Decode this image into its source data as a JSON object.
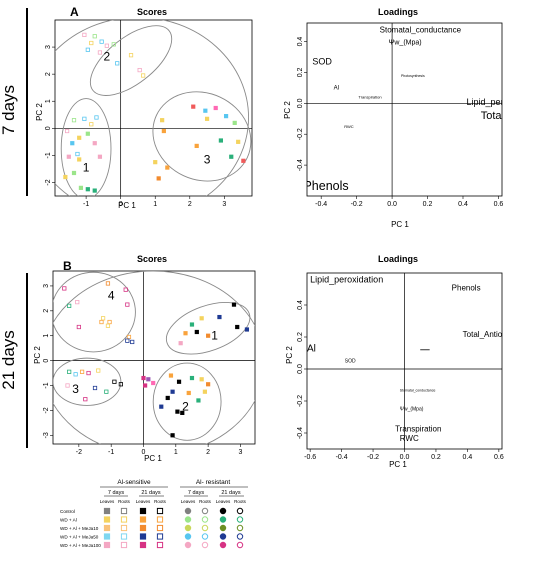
{
  "figure": {
    "panel_a_letter": "A",
    "panel_b_letter": "B",
    "row_a_label": "7 days",
    "row_b_label": "21 days"
  },
  "chart_data": [
    {
      "id": "scores_7",
      "type": "scatter",
      "title": "Scores",
      "xlabel": "PC 1",
      "ylabel": "PC 2",
      "xlim": [
        -1.9,
        3.8
      ],
      "ylim": [
        -2.5,
        4.0
      ],
      "xticks": [
        "-1",
        "0",
        "1",
        "2",
        "3"
      ],
      "xtick_values": [
        -1,
        0,
        1,
        2,
        3
      ],
      "yticks": [
        "-2",
        "-1",
        "0",
        "1",
        "2",
        "3"
      ],
      "ytick_values": [
        -2,
        -1,
        0,
        1,
        2,
        3
      ],
      "group_labels": [
        {
          "text": "1",
          "x": -1.0,
          "y": -1.6
        },
        {
          "text": "2",
          "x": -0.4,
          "y": 2.5
        },
        {
          "text": "3",
          "x": 2.5,
          "y": -1.3
        }
      ],
      "ellipses": [
        {
          "cx": 0.3,
          "cy": 2.5,
          "rx": 1.4,
          "ry": 0.85,
          "angle": -38
        },
        {
          "cx": -1.0,
          "cy": -0.75,
          "rx": 0.72,
          "ry": 1.85,
          "angle": 0
        },
        {
          "cx": 2.35,
          "cy": -0.3,
          "rx": 1.45,
          "ry": 1.6,
          "angle": 25
        },
        {
          "cx": 0.5,
          "cy": 0.4,
          "rx": 3.2,
          "ry": 3.7,
          "angle": 0
        }
      ],
      "points": [
        {
          "x": -1.05,
          "y": 3.45,
          "c": "#f4a7c3",
          "f": 0
        },
        {
          "x": -0.75,
          "y": 3.4,
          "c": "#9be58a",
          "f": 0
        },
        {
          "x": -0.55,
          "y": 3.2,
          "c": "#58c6f0",
          "f": 0
        },
        {
          "x": -0.85,
          "y": 3.15,
          "c": "#f4d35e",
          "f": 0
        },
        {
          "x": -0.4,
          "y": 3.05,
          "c": "#f4a7c3",
          "f": 0
        },
        {
          "x": -0.2,
          "y": 3.1,
          "c": "#9be58a",
          "f": 0
        },
        {
          "x": -0.95,
          "y": 2.9,
          "c": "#58c6f0",
          "f": 0
        },
        {
          "x": -0.6,
          "y": 2.8,
          "c": "#f4a7c3",
          "f": 0
        },
        {
          "x": 0.3,
          "y": 2.7,
          "c": "#f4d35e",
          "f": 0
        },
        {
          "x": 0.55,
          "y": 2.15,
          "c": "#f4a7c3",
          "f": 0
        },
        {
          "x": 0.65,
          "y": 1.95,
          "c": "#f4d35e",
          "f": 0
        },
        {
          "x": -0.1,
          "y": 2.4,
          "c": "#58c6f0",
          "f": 0
        },
        {
          "x": -1.35,
          "y": 0.3,
          "c": "#9be58a",
          "f": 0
        },
        {
          "x": -1.05,
          "y": 0.35,
          "c": "#58c6f0",
          "f": 0
        },
        {
          "x": -0.85,
          "y": 0.15,
          "c": "#f4d35e",
          "f": 0
        },
        {
          "x": -0.7,
          "y": 0.4,
          "c": "#58c6f0",
          "f": 0
        },
        {
          "x": -1.55,
          "y": -0.1,
          "c": "#f4a7c3",
          "f": 0
        },
        {
          "x": -1.2,
          "y": -0.35,
          "c": "#f4d35e",
          "f": 1
        },
        {
          "x": -0.95,
          "y": -0.2,
          "c": "#9be58a",
          "f": 1
        },
        {
          "x": -1.4,
          "y": -0.55,
          "c": "#58c6f0",
          "f": 1
        },
        {
          "x": -0.75,
          "y": -0.55,
          "c": "#f4a7c3",
          "f": 1
        },
        {
          "x": -1.5,
          "y": -1.05,
          "c": "#f4a7c3",
          "f": 1
        },
        {
          "x": -1.2,
          "y": -1.15,
          "c": "#f4d35e",
          "f": 1
        },
        {
          "x": -0.6,
          "y": -1.05,
          "c": "#f4a7c3",
          "f": 1
        },
        {
          "x": -1.6,
          "y": -1.8,
          "c": "#f4d35e",
          "f": 1
        },
        {
          "x": -1.35,
          "y": -1.65,
          "c": "#9be58a",
          "f": 1
        },
        {
          "x": -0.95,
          "y": -2.25,
          "c": "#2ab07a",
          "f": 1
        },
        {
          "x": -0.75,
          "y": -2.3,
          "c": "#2ab07a",
          "f": 1
        },
        {
          "x": -1.15,
          "y": -2.2,
          "c": "#9be58a",
          "f": 1
        },
        {
          "x": -1.25,
          "y": -0.95,
          "c": "#58c6f0",
          "f": 0
        },
        {
          "x": 1.2,
          "y": 0.3,
          "c": "#f4d35e",
          "f": 1
        },
        {
          "x": 1.25,
          "y": -0.1,
          "c": "#f9a33c",
          "f": 1
        },
        {
          "x": 1.0,
          "y": -1.25,
          "c": "#f4d35e",
          "f": 1
        },
        {
          "x": 1.35,
          "y": -1.45,
          "c": "#f9a33c",
          "f": 1
        },
        {
          "x": 1.1,
          "y": -1.85,
          "c": "#f28b2e",
          "f": 1
        },
        {
          "x": 2.1,
          "y": 0.8,
          "c": "#f05a5a",
          "f": 1
        },
        {
          "x": 2.45,
          "y": 0.65,
          "c": "#58c6f0",
          "f": 1
        },
        {
          "x": 2.75,
          "y": 0.75,
          "c": "#ff69b4",
          "f": 1
        },
        {
          "x": 2.5,
          "y": 0.35,
          "c": "#f4d35e",
          "f": 1
        },
        {
          "x": 3.05,
          "y": 0.45,
          "c": "#58c6f0",
          "f": 1
        },
        {
          "x": 3.3,
          "y": 0.2,
          "c": "#9be58a",
          "f": 1
        },
        {
          "x": 2.2,
          "y": -0.65,
          "c": "#f9a33c",
          "f": 1
        },
        {
          "x": 2.9,
          "y": -0.45,
          "c": "#2ab07a",
          "f": 1
        },
        {
          "x": 3.4,
          "y": -0.5,
          "c": "#f4d35e",
          "f": 1
        },
        {
          "x": 3.2,
          "y": -1.05,
          "c": "#2ab07a",
          "f": 1
        },
        {
          "x": 3.55,
          "y": -1.2,
          "c": "#f05a5a",
          "f": 1
        }
      ]
    },
    {
      "id": "loadings_7",
      "type": "scatter",
      "title": "Loadings",
      "xlabel": "PC 1",
      "ylabel": "PC 2",
      "xlim": [
        -0.48,
        0.62
      ],
      "ylim": [
        -0.6,
        0.52
      ],
      "xticks": [
        "-0.4",
        "-0.2",
        "0.0",
        "0.2",
        "0.4",
        "0.6"
      ],
      "xtick_values": [
        -0.4,
        -0.2,
        0.0,
        0.2,
        0.4,
        0.6
      ],
      "yticks": [
        "-0.4",
        "-0.2",
        "0.0",
        "0.2",
        "0.4"
      ],
      "ytick_values": [
        -0.4,
        -0.2,
        0.0,
        0.2,
        0.4
      ],
      "labels": [
        {
          "text": "Stomatal_conductance",
          "x": -0.07,
          "y": 0.46,
          "size": 8
        },
        {
          "text": "Ψw_(Mpa)",
          "x": -0.02,
          "y": 0.38,
          "size": 7
        },
        {
          "text": "SOD",
          "x": -0.45,
          "y": 0.25,
          "size": 9
        },
        {
          "text": "Photosynthesis",
          "x": 0.05,
          "y": 0.17,
          "size": 3.5
        },
        {
          "text": "Al",
          "x": -0.33,
          "y": 0.09,
          "size": 6
        },
        {
          "text": "Transpiration",
          "x": -0.19,
          "y": 0.03,
          "size": 4
        },
        {
          "text": "Lipid_peroxidation",
          "x": 0.42,
          "y": -0.01,
          "size": 9
        },
        {
          "text": "Total_Antioxidants",
          "x": 0.5,
          "y": -0.1,
          "size": 11
        },
        {
          "text": "RWC",
          "x": -0.27,
          "y": -0.16,
          "size": 4
        },
        {
          "text": "Phenols",
          "x": -0.5,
          "y": -0.56,
          "size": 12.5
        }
      ]
    },
    {
      "id": "scores_21",
      "type": "scatter",
      "title": "Scores",
      "xlabel": "PC 1",
      "ylabel": "PC 2",
      "xlim": [
        -2.8,
        3.45
      ],
      "ylim": [
        -3.35,
        3.6
      ],
      "xticks": [
        "-2",
        "-1",
        "0",
        "1",
        "2",
        "3"
      ],
      "xtick_values": [
        -2,
        -1,
        0,
        1,
        2,
        3
      ],
      "yticks": [
        "-3",
        "-2",
        "-1",
        "0",
        "1",
        "2",
        "3"
      ],
      "ytick_values": [
        -3,
        -2,
        -1,
        0,
        1,
        2,
        3
      ],
      "group_labels": [
        {
          "text": "1",
          "x": 2.2,
          "y": 0.85
        },
        {
          "text": "2",
          "x": 1.3,
          "y": -2.0
        },
        {
          "text": "3",
          "x": -2.1,
          "y": -1.3
        },
        {
          "text": "4",
          "x": -1.0,
          "y": 2.45
        }
      ],
      "ellipses": [
        {
          "cx": 2.0,
          "cy": 1.3,
          "rx": 1.35,
          "ry": 0.9,
          "angle": -20
        },
        {
          "cx": 1.35,
          "cy": -1.65,
          "rx": 1.05,
          "ry": 1.55,
          "angle": 0
        },
        {
          "cx": -1.75,
          "cy": -0.85,
          "rx": 1.05,
          "ry": 0.95,
          "angle": 0
        },
        {
          "cx": -1.55,
          "cy": 1.95,
          "rx": 1.3,
          "ry": 1.6,
          "angle": 0
        },
        {
          "cx": 0.3,
          "cy": -0.1,
          "rx": 3.45,
          "ry": 3.7,
          "angle": 0
        }
      ],
      "points": [
        {
          "x": -2.45,
          "y": 2.9,
          "c": "#d63384",
          "f": 0
        },
        {
          "x": -1.1,
          "y": 3.1,
          "c": "#f28b2e",
          "f": 0
        },
        {
          "x": -0.55,
          "y": 2.85,
          "c": "#d63384",
          "f": 0
        },
        {
          "x": -2.3,
          "y": 2.2,
          "c": "#2ab07a",
          "f": 0
        },
        {
          "x": -2.05,
          "y": 2.35,
          "c": "#f4a7c3",
          "f": 0
        },
        {
          "x": -0.5,
          "y": 2.25,
          "c": "#d63384",
          "f": 0
        },
        {
          "x": -1.25,
          "y": 1.7,
          "c": "#f4d35e",
          "f": 0
        },
        {
          "x": -1.05,
          "y": 1.55,
          "c": "#f9a33c",
          "f": 0
        },
        {
          "x": -1.1,
          "y": 1.4,
          "c": "#f4d35e",
          "f": 0
        },
        {
          "x": -1.3,
          "y": 1.55,
          "c": "#f9a33c",
          "f": 0
        },
        {
          "x": -2.0,
          "y": 1.35,
          "c": "#d63384",
          "f": 0
        },
        {
          "x": -0.45,
          "y": 0.95,
          "c": "#f9a33c",
          "f": 0
        },
        {
          "x": -0.5,
          "y": 0.8,
          "c": "#1f3a93",
          "f": 0
        },
        {
          "x": -0.35,
          "y": 0.75,
          "c": "#1f3a93",
          "f": 0
        },
        {
          "x": -2.3,
          "y": -0.45,
          "c": "#2ab07a",
          "f": 0
        },
        {
          "x": -2.1,
          "y": -0.55,
          "c": "#58c6f0",
          "f": 0
        },
        {
          "x": -1.9,
          "y": -0.45,
          "c": "#f9a33c",
          "f": 0
        },
        {
          "x": -1.7,
          "y": -0.5,
          "c": "#d63384",
          "f": 0
        },
        {
          "x": -1.4,
          "y": -0.4,
          "c": "#f4d35e",
          "f": 0
        },
        {
          "x": -0.9,
          "y": -0.85,
          "c": "#000000",
          "f": 0
        },
        {
          "x": -0.7,
          "y": -0.95,
          "c": "#000000",
          "f": 0
        },
        {
          "x": -1.15,
          "y": -1.25,
          "c": "#2ab07a",
          "f": 0
        },
        {
          "x": -1.8,
          "y": -1.55,
          "c": "#d63384",
          "f": 0
        },
        {
          "x": -1.5,
          "y": -1.1,
          "c": "#1f3a93",
          "f": 0
        },
        {
          "x": -2.35,
          "y": -1.0,
          "c": "#f4a7c3",
          "f": 0
        },
        {
          "x": 0.0,
          "y": -0.7,
          "c": "#d63384",
          "f": 1
        },
        {
          "x": 0.15,
          "y": -0.75,
          "c": "#9b59b6",
          "f": 1
        },
        {
          "x": 0.3,
          "y": -0.9,
          "c": "#ff69b4",
          "f": 1
        },
        {
          "x": 0.05,
          "y": -1.0,
          "c": "#d63384",
          "f": 1
        },
        {
          "x": 0.85,
          "y": -0.6,
          "c": "#f9a33c",
          "f": 1
        },
        {
          "x": 1.1,
          "y": -0.85,
          "c": "#000000",
          "f": 1
        },
        {
          "x": 1.5,
          "y": -0.7,
          "c": "#2ab07a",
          "f": 1
        },
        {
          "x": 1.8,
          "y": -0.75,
          "c": "#f4d35e",
          "f": 1
        },
        {
          "x": 2.0,
          "y": -0.95,
          "c": "#f28b2e",
          "f": 1
        },
        {
          "x": 0.9,
          "y": -1.25,
          "c": "#1f3a93",
          "f": 1
        },
        {
          "x": 1.4,
          "y": -1.3,
          "c": "#f9a33c",
          "f": 1
        },
        {
          "x": 0.75,
          "y": -1.5,
          "c": "#000000",
          "f": 1
        },
        {
          "x": 1.05,
          "y": -2.05,
          "c": "#000000",
          "f": 1
        },
        {
          "x": 1.2,
          "y": -2.1,
          "c": "#000000",
          "f": 1
        },
        {
          "x": 0.55,
          "y": -1.85,
          "c": "#1f3a93",
          "f": 1
        },
        {
          "x": 1.7,
          "y": -1.6,
          "c": "#2ab07a",
          "f": 1
        },
        {
          "x": 1.9,
          "y": -1.25,
          "c": "#f4d35e",
          "f": 1
        },
        {
          "x": 0.9,
          "y": -3.0,
          "c": "#000000",
          "f": 1
        },
        {
          "x": 1.3,
          "y": 1.1,
          "c": "#f9a33c",
          "f": 1
        },
        {
          "x": 1.5,
          "y": 1.45,
          "c": "#2ab07a",
          "f": 1
        },
        {
          "x": 1.8,
          "y": 1.7,
          "c": "#f4d35e",
          "f": 1
        },
        {
          "x": 1.65,
          "y": 1.15,
          "c": "#000000",
          "f": 1
        },
        {
          "x": 2.0,
          "y": 1.0,
          "c": "#f28b2e",
          "f": 1
        },
        {
          "x": 2.35,
          "y": 1.75,
          "c": "#1f3a93",
          "f": 1
        },
        {
          "x": 2.8,
          "y": 2.25,
          "c": "#000000",
          "f": 1
        },
        {
          "x": 2.9,
          "y": 1.35,
          "c": "#000000",
          "f": 1
        },
        {
          "x": 3.2,
          "y": 1.25,
          "c": "#1f3a93",
          "f": 1
        },
        {
          "x": 1.15,
          "y": 0.7,
          "c": "#f4a7c3",
          "f": 1
        }
      ]
    },
    {
      "id": "loadings_21",
      "type": "scatter",
      "title": "Loadings",
      "xlabel": "PC 1",
      "ylabel": "PC 2",
      "xlim": [
        -0.62,
        0.62
      ],
      "ylim": [
        -0.5,
        0.6
      ],
      "xticks": [
        "-0.6",
        "-0.4",
        "-0.2",
        "0.0",
        "0.2",
        "0.4",
        "0.6"
      ],
      "xtick_values": [
        -0.6,
        -0.4,
        -0.2,
        0.0,
        0.2,
        0.4,
        0.6
      ],
      "yticks": [
        "-0.4",
        "-0.2",
        "0.0",
        "0.2",
        "0.4"
      ],
      "ytick_values": [
        -0.4,
        -0.2,
        0.0,
        0.2,
        0.4
      ],
      "labels": [
        {
          "text": "Lipid_peroxidation",
          "x": -0.6,
          "y": 0.54,
          "size": 9
        },
        {
          "text": "Phenols",
          "x": 0.3,
          "y": 0.49,
          "size": 8
        },
        {
          "text": "Total_Antioxidants",
          "x": 0.37,
          "y": 0.2,
          "size": 8
        },
        {
          "text": "Al",
          "x": -0.62,
          "y": 0.11,
          "size": 10
        },
        {
          "text": "SOD",
          "x": -0.38,
          "y": 0.04,
          "size": 5
        },
        {
          "text": "Stomatal_conductance",
          "x": -0.03,
          "y": -0.14,
          "size": 3.5
        },
        {
          "text": "Ψw_(Mpa)",
          "x": -0.03,
          "y": -0.26,
          "size": 5
        },
        {
          "text": "Transpiration",
          "x": -0.06,
          "y": -0.39,
          "size": 8
        },
        {
          "text": "RWC",
          "x": -0.03,
          "y": -0.45,
          "size": 8
        }
      ],
      "segment": {
        "x1": 0.1,
        "x2": 0.16,
        "y": 0.12
      }
    }
  ],
  "legend": {
    "group_sensitive": "Al-sensitive",
    "group_resistant": "Al- resistant",
    "period_7": "7 days",
    "period_21": "21 days",
    "col_leaves": "Leaves",
    "col_roots": "Roots",
    "rows": [
      {
        "label": "Control",
        "colors": [
          "#808080",
          "#808080",
          "#000000",
          "#000000",
          "#808080",
          "#808080",
          "#000000",
          "#000000"
        ]
      },
      {
        "label": "WD + Al",
        "colors": [
          "#f4d35e",
          "#f4d35e",
          "#f9a33c",
          "#f9a33c",
          "#9be58a",
          "#9be58a",
          "#2ab07a",
          "#2ab07a"
        ]
      },
      {
        "label": "WD + Al + MeJa10",
        "colors": [
          "#f9c27a",
          "#f9c27a",
          "#f28b2e",
          "#f28b2e",
          "#c9d75a",
          "#c9d75a",
          "#6b8e23",
          "#6b8e23"
        ]
      },
      {
        "label": "WD + Al + MeJa50",
        "colors": [
          "#7fd7f0",
          "#7fd7f0",
          "#1f3a93",
          "#1f3a93",
          "#58c6f0",
          "#58c6f0",
          "#1f3a93",
          "#1f3a93"
        ]
      },
      {
        "label": "WD + Al + MeJa100",
        "colors": [
          "#f4a7c3",
          "#f4a7c3",
          "#d63384",
          "#d63384",
          "#f4a7c3",
          "#f4a7c3",
          "#d63384",
          "#d63384"
        ]
      }
    ]
  }
}
